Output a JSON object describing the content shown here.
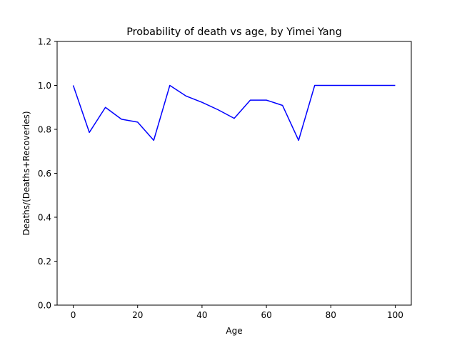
{
  "chart_data": {
    "type": "line",
    "title": "Probability of death vs age, by Yimei Yang",
    "xlabel": "Age",
    "ylabel": "Deaths/(Deaths+Recoveries)",
    "xlim": [
      -5,
      105
    ],
    "ylim": [
      0,
      1.2
    ],
    "xticks": [
      "0",
      "20",
      "40",
      "60",
      "80",
      "100"
    ],
    "yticks": [
      "0.0",
      "0.2",
      "0.4",
      "0.6",
      "0.8",
      "1.0",
      "1.2"
    ],
    "grid": false,
    "legend": "none",
    "series": [
      {
        "color": "#0000ff",
        "x": [
          0,
          5,
          10,
          15,
          20,
          25,
          30,
          35,
          40,
          45,
          50,
          55,
          60,
          65,
          70,
          75,
          80,
          85,
          90,
          95,
          100
        ],
        "y": [
          1.0,
          0.786,
          0.9,
          0.846,
          0.833,
          0.75,
          1.0,
          0.952,
          0.923,
          0.889,
          0.85,
          0.933,
          0.933,
          0.909,
          0.75,
          1.0,
          1.0,
          1.0,
          1.0,
          1.0,
          1.0
        ]
      }
    ]
  }
}
